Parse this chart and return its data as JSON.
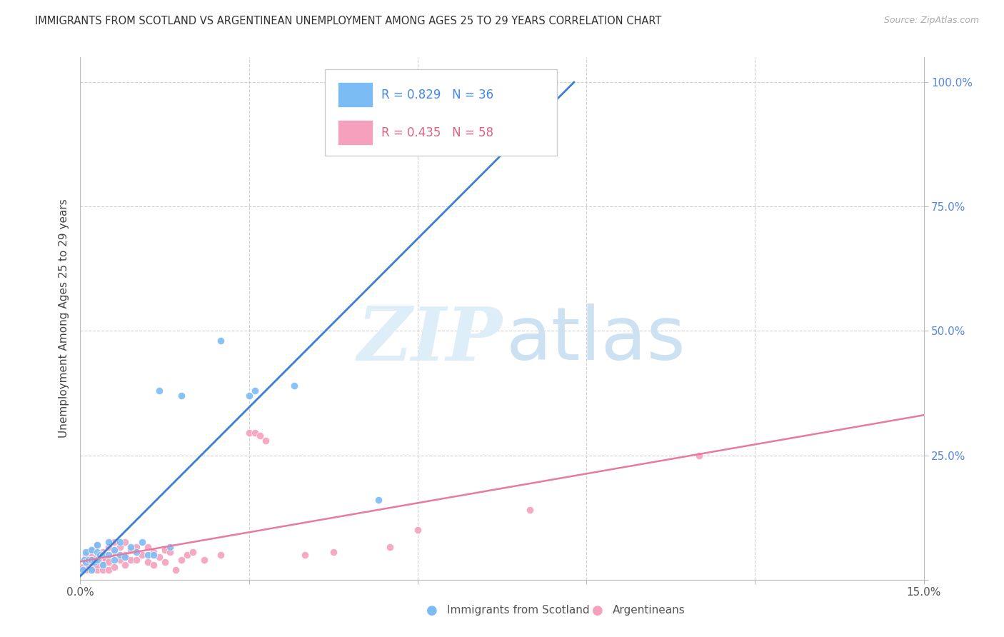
{
  "title": "IMMIGRANTS FROM SCOTLAND VS ARGENTINEAN UNEMPLOYMENT AMONG AGES 25 TO 29 YEARS CORRELATION CHART",
  "source": "Source: ZipAtlas.com",
  "ylabel": "Unemployment Among Ages 25 to 29 years",
  "legend_labels": [
    "Immigrants from Scotland",
    "Argentineans"
  ],
  "color_blue": "#7bbcf5",
  "color_pink": "#f5a0bc",
  "line_blue": "#3a7fd4",
  "line_pink": "#e87aa0",
  "R_blue": 0.829,
  "N_blue": 36,
  "R_pink": 0.435,
  "N_pink": 58,
  "xlim": [
    0.0,
    0.15
  ],
  "ylim": [
    0.0,
    1.05
  ],
  "blue_points": [
    [
      0.0005,
      0.02
    ],
    [
      0.0007,
      0.04
    ],
    [
      0.001,
      0.035
    ],
    [
      0.001,
      0.055
    ],
    [
      0.0015,
      0.04
    ],
    [
      0.002,
      0.02
    ],
    [
      0.002,
      0.04
    ],
    [
      0.002,
      0.06
    ],
    [
      0.0025,
      0.035
    ],
    [
      0.003,
      0.04
    ],
    [
      0.003,
      0.055
    ],
    [
      0.003,
      0.07
    ],
    [
      0.0035,
      0.05
    ],
    [
      0.004,
      0.03
    ],
    [
      0.004,
      0.05
    ],
    [
      0.005,
      0.05
    ],
    [
      0.005,
      0.075
    ],
    [
      0.006,
      0.04
    ],
    [
      0.006,
      0.06
    ],
    [
      0.007,
      0.05
    ],
    [
      0.007,
      0.075
    ],
    [
      0.008,
      0.045
    ],
    [
      0.009,
      0.065
    ],
    [
      0.01,
      0.055
    ],
    [
      0.011,
      0.075
    ],
    [
      0.012,
      0.05
    ],
    [
      0.013,
      0.05
    ],
    [
      0.014,
      0.38
    ],
    [
      0.016,
      0.065
    ],
    [
      0.018,
      0.37
    ],
    [
      0.025,
      0.48
    ],
    [
      0.03,
      0.37
    ],
    [
      0.031,
      0.38
    ],
    [
      0.038,
      0.39
    ],
    [
      0.053,
      0.16
    ],
    [
      0.055,
      1.0
    ]
  ],
  "pink_points": [
    [
      0.0005,
      0.025
    ],
    [
      0.001,
      0.02
    ],
    [
      0.001,
      0.035
    ],
    [
      0.001,
      0.05
    ],
    [
      0.0015,
      0.03
    ],
    [
      0.002,
      0.02
    ],
    [
      0.002,
      0.03
    ],
    [
      0.002,
      0.045
    ],
    [
      0.002,
      0.06
    ],
    [
      0.0025,
      0.025
    ],
    [
      0.003,
      0.02
    ],
    [
      0.003,
      0.03
    ],
    [
      0.003,
      0.045
    ],
    [
      0.003,
      0.07
    ],
    [
      0.004,
      0.02
    ],
    [
      0.004,
      0.035
    ],
    [
      0.004,
      0.055
    ],
    [
      0.0045,
      0.04
    ],
    [
      0.005,
      0.02
    ],
    [
      0.005,
      0.035
    ],
    [
      0.005,
      0.065
    ],
    [
      0.006,
      0.025
    ],
    [
      0.006,
      0.055
    ],
    [
      0.006,
      0.075
    ],
    [
      0.007,
      0.04
    ],
    [
      0.007,
      0.065
    ],
    [
      0.008,
      0.03
    ],
    [
      0.008,
      0.05
    ],
    [
      0.008,
      0.075
    ],
    [
      0.009,
      0.04
    ],
    [
      0.009,
      0.06
    ],
    [
      0.01,
      0.04
    ],
    [
      0.01,
      0.065
    ],
    [
      0.011,
      0.05
    ],
    [
      0.012,
      0.035
    ],
    [
      0.012,
      0.065
    ],
    [
      0.013,
      0.03
    ],
    [
      0.013,
      0.055
    ],
    [
      0.014,
      0.045
    ],
    [
      0.015,
      0.035
    ],
    [
      0.015,
      0.06
    ],
    [
      0.016,
      0.055
    ],
    [
      0.017,
      0.02
    ],
    [
      0.018,
      0.04
    ],
    [
      0.019,
      0.05
    ],
    [
      0.02,
      0.055
    ],
    [
      0.022,
      0.04
    ],
    [
      0.025,
      0.05
    ],
    [
      0.03,
      0.295
    ],
    [
      0.031,
      0.295
    ],
    [
      0.032,
      0.29
    ],
    [
      0.033,
      0.28
    ],
    [
      0.04,
      0.05
    ],
    [
      0.045,
      0.055
    ],
    [
      0.055,
      0.065
    ],
    [
      0.06,
      0.1
    ],
    [
      0.08,
      0.14
    ],
    [
      0.11,
      0.25
    ]
  ]
}
